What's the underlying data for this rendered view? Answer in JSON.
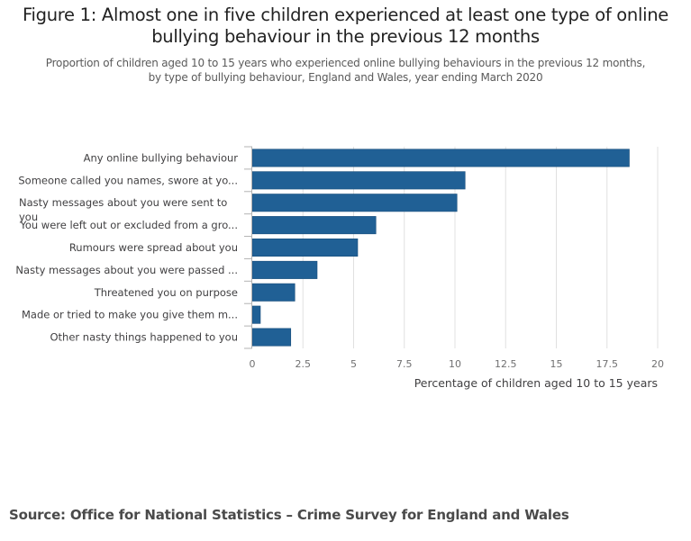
{
  "header": {
    "title_line1": "Figure 1: Almost one in five children experienced at least one type of online",
    "title_line2": "bullying behaviour in the previous 12 months",
    "subtitle_line1": "Proportion of children aged 10 to 15 years who experienced online bullying behaviours in the previous 12 months,",
    "subtitle_line2": "by type of bullying behaviour, England and Wales, year ending March 2020"
  },
  "footer": {
    "source": "Source: Office for National Statistics – Crime Survey for England and Wales"
  },
  "colors": {
    "bar": "#206095",
    "grid": "#e0e0e0",
    "axis": "#b3b3b3"
  },
  "chart_data": {
    "type": "bar",
    "orientation": "horizontal",
    "title": "Figure 1: Almost one in five children experienced at least one type of online bullying behaviour in the previous 12 months",
    "subtitle": "Proportion of children aged 10 to 15 years who experienced online bullying behaviours in the previous 12 months, by type of bullying behaviour, England and Wales, year ending March 2020",
    "categories": [
      "Any online bullying behaviour",
      "Someone called you names, swore at yo...",
      "Nasty messages about you were sent to you",
      "You were left out or excluded from a gro...",
      "Rumours were spread about you",
      "Nasty messages about you were passed ...",
      "Threatened you on purpose",
      "Made or tried to make you give them m...",
      "Other nasty things happened to you"
    ],
    "values": [
      18.6,
      10.5,
      10.1,
      6.1,
      5.2,
      3.2,
      2.1,
      0.4,
      1.9
    ],
    "xlabel": "Percentage of children aged 10 to 15 years",
    "ylabel": "",
    "xlim": [
      0,
      20
    ],
    "xticks": [
      0,
      2.5,
      5,
      7.5,
      10,
      12.5,
      15,
      17.5,
      20
    ],
    "xtick_labels": [
      "0",
      "2.5",
      "5",
      "7.5",
      "10",
      "12.5",
      "15",
      "17.5",
      "20"
    ],
    "grid": true,
    "legend": "none"
  }
}
